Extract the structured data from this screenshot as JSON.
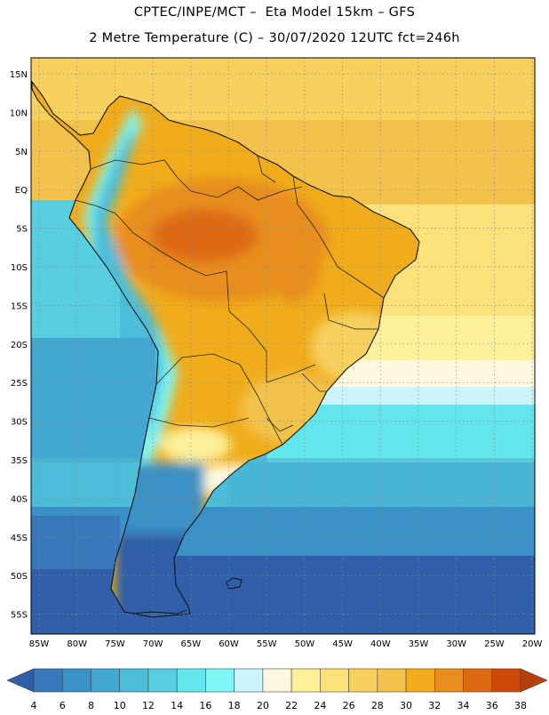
{
  "header": {
    "title_line1": "CPTEC/INPE/MCT –  Eta Model 15km – GFS",
    "title_line2": "2 Metre Temperature (C) – 30/07/2020 12UTC fct=246h"
  },
  "map": {
    "region": "South America",
    "lat_labels": [
      "15N",
      "10N",
      "5N",
      "EQ",
      "5S",
      "10S",
      "15S",
      "20S",
      "25S",
      "30S",
      "35S",
      "40S",
      "45S",
      "50S",
      "55S"
    ],
    "lon_labels": [
      "85W",
      "80W",
      "75W",
      "70W",
      "65W",
      "60W",
      "55W",
      "50W",
      "45W",
      "40W",
      "35W",
      "30W",
      "25W",
      "20W"
    ]
  },
  "legend": {
    "ticks": [
      "4",
      "6",
      "8",
      "10",
      "12",
      "14",
      "16",
      "18",
      "20",
      "22",
      "24",
      "26",
      "28",
      "30",
      "32",
      "34",
      "36",
      "38"
    ],
    "colors": [
      "#2f5fa8",
      "#3778bb",
      "#3a91c6",
      "#42a8d2",
      "#4cbdd9",
      "#57cfe0",
      "#62e6ec",
      "#7ff7f7",
      "#ccf5fb",
      "#fff8e0",
      "#fdf09a",
      "#fbe27a",
      "#f7d05e",
      "#f2c24a",
      "#f0ac1a",
      "#e88e1e",
      "#de6a12",
      "#cc4a08",
      "#b4400a"
    ]
  }
}
